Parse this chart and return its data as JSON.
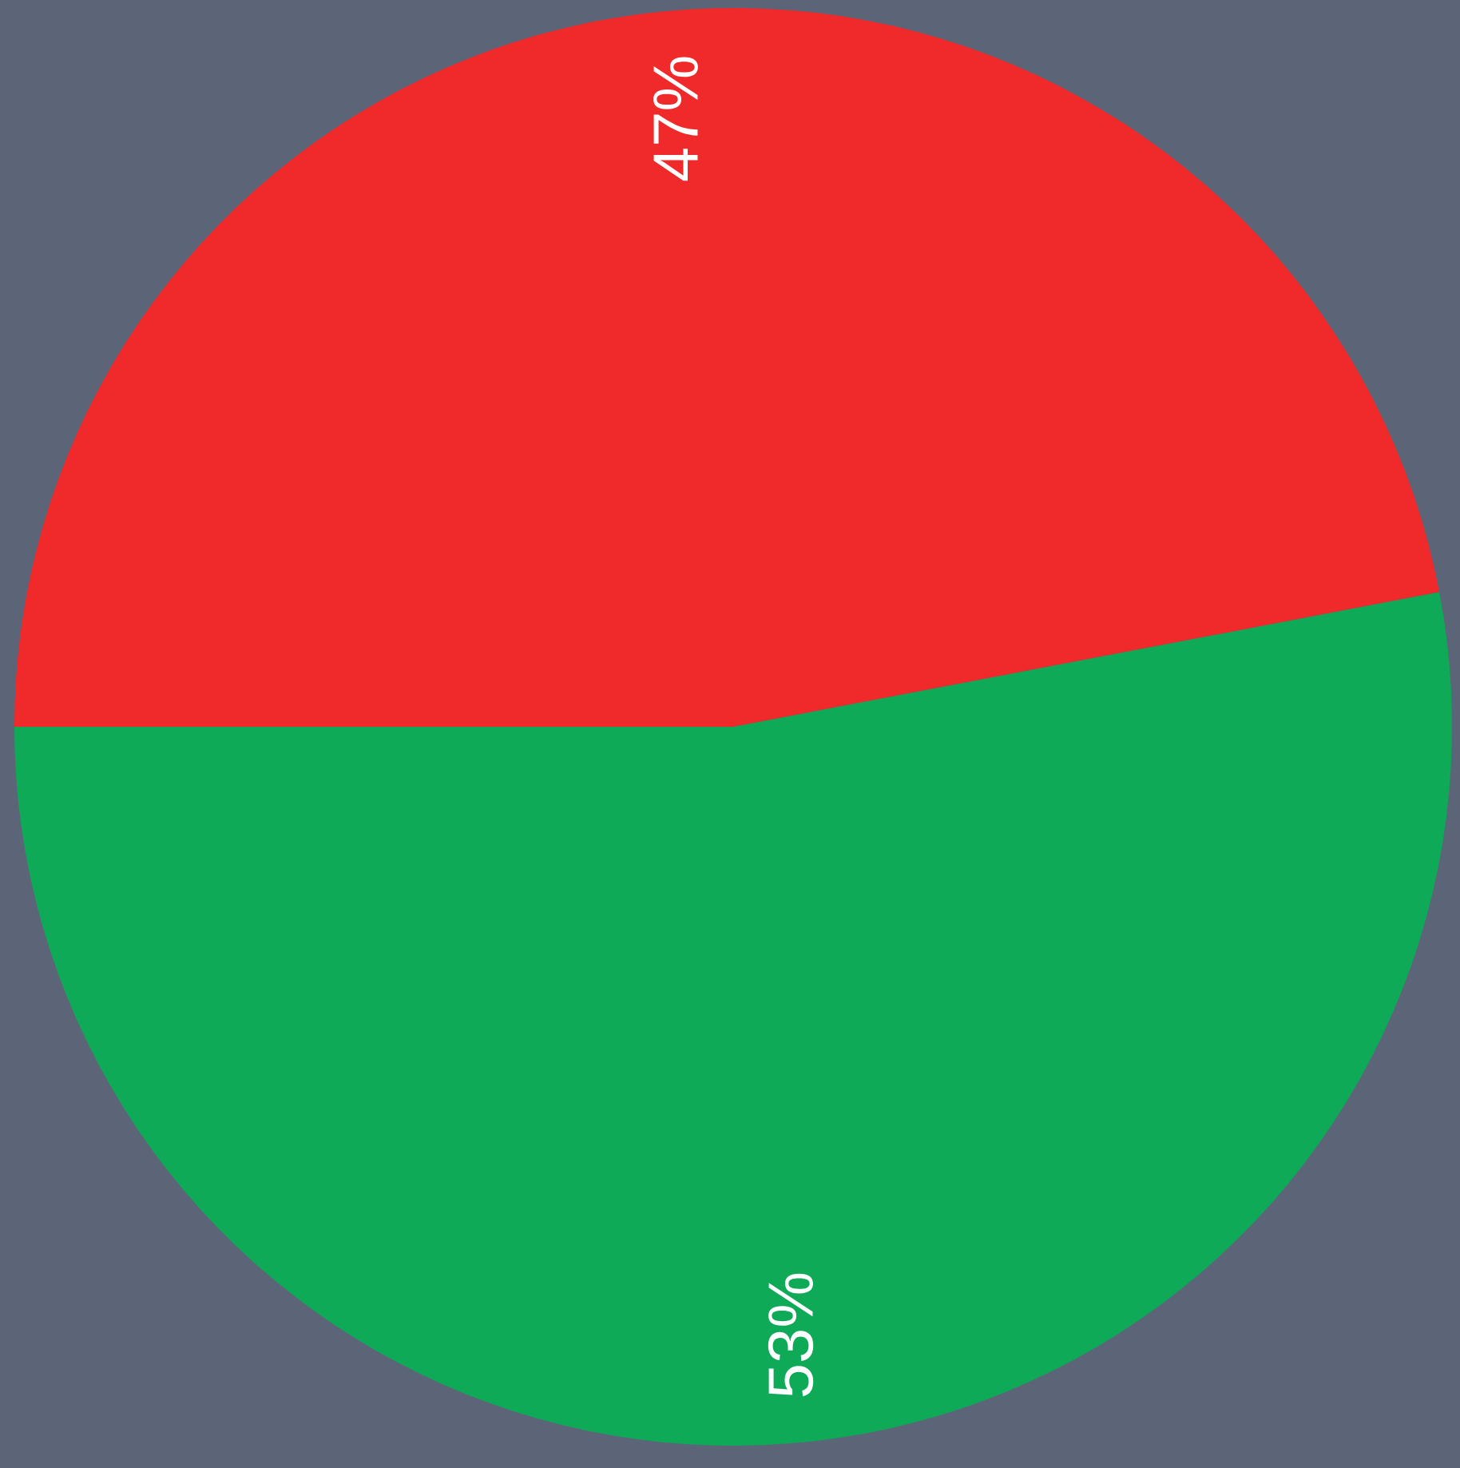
{
  "chart_data": {
    "type": "pie",
    "categories": [
      null,
      null
    ],
    "values": [
      47,
      53
    ],
    "colors": [
      "#f02a2a",
      "#0faa58"
    ],
    "value_labels": [
      "47%",
      "53%"
    ]
  }
}
